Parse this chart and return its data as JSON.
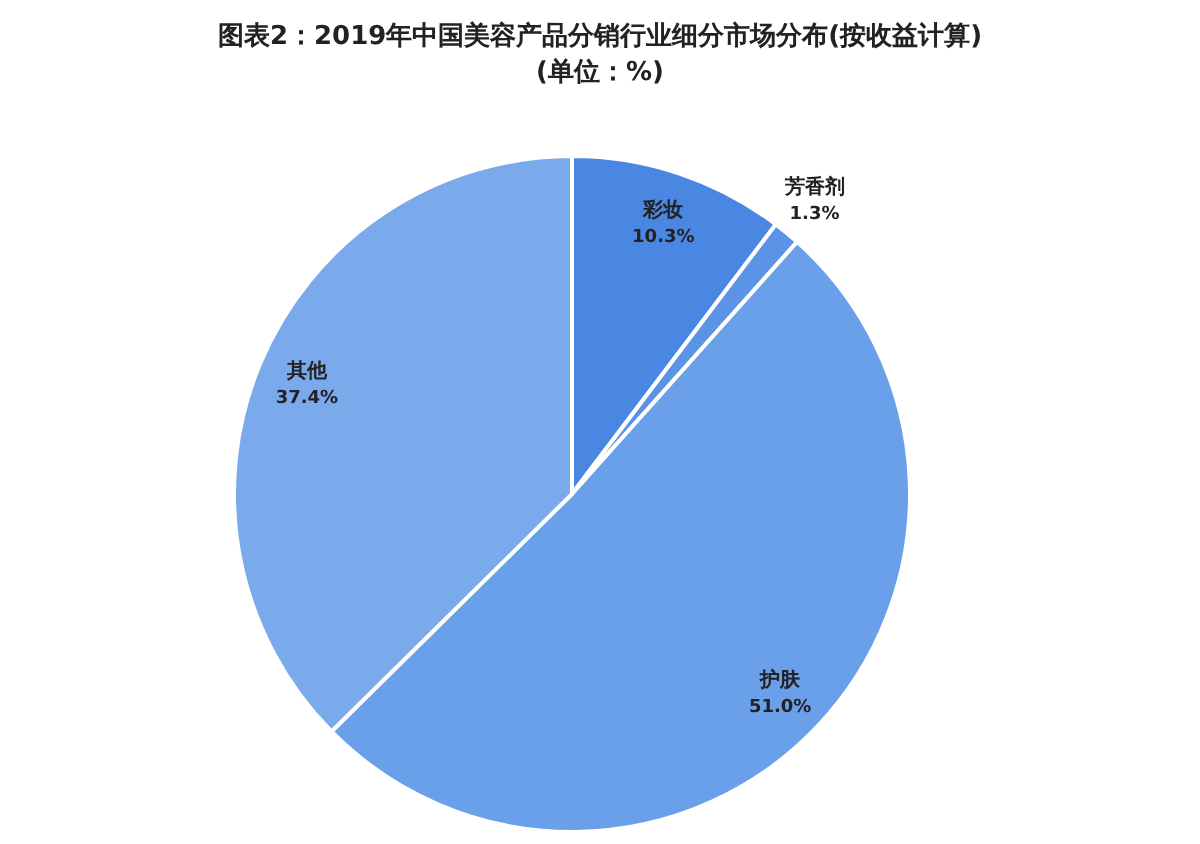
{
  "chart_data": {
    "type": "pie",
    "title": "图表2：2019年中国美容产品分销行业细分市场分布(按收益计算)",
    "subtitle": "(单位：%)",
    "categories": [
      "彩妆",
      "芳香剂",
      "护肤",
      "其他"
    ],
    "values": [
      10.3,
      1.3,
      51.0,
      37.4
    ],
    "value_labels": [
      "10.3%",
      "1.3%",
      "51.0%",
      "37.4%"
    ],
    "colors": [
      "#4a87e3",
      "#5b94e6",
      "#6a9fe9",
      "#7aaaeb"
    ]
  }
}
